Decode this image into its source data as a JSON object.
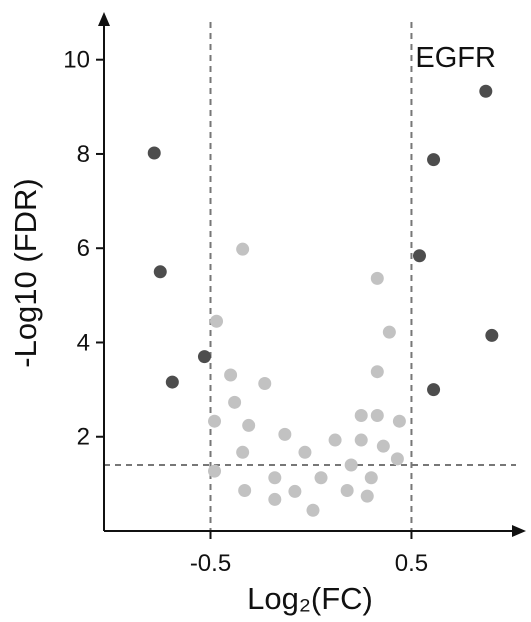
{
  "chart_data": {
    "type": "scatter",
    "xlabel": "Log₂(FC)",
    "ylabel": "-Log10 (FDR)",
    "xlim": [
      -1.03,
      1.07
    ],
    "ylim": [
      0,
      10.8
    ],
    "x_ticks": [
      {
        "value": -0.5,
        "label": "-0.5"
      },
      {
        "value": 0.5,
        "label": "0.5"
      }
    ],
    "y_ticks": [
      {
        "value": 2,
        "label": "2"
      },
      {
        "value": 4,
        "label": "4"
      },
      {
        "value": 6,
        "label": "6"
      },
      {
        "value": 8,
        "label": "8"
      },
      {
        "value": 10,
        "label": "10"
      }
    ],
    "thresholds": {
      "x": [
        -0.5,
        0.5
      ],
      "y": 1.4
    },
    "grid": false,
    "annotations": [
      {
        "text": "EGFR",
        "x": 0.72,
        "y": 9.85
      }
    ],
    "colors": {
      "significant": "#4d4d4d",
      "nonsignificant": "#c2c2c2",
      "axis": "#111111",
      "threshold": "#777777"
    },
    "series": [
      {
        "points": [
          {
            "x": -0.78,
            "y": 8.02
          },
          {
            "x": -0.75,
            "y": 5.5
          },
          {
            "x": -0.69,
            "y": 3.16
          },
          {
            "x": -0.53,
            "y": 3.7
          },
          {
            "x": 0.54,
            "y": 5.84
          },
          {
            "x": 0.61,
            "y": 7.88
          },
          {
            "x": 0.61,
            "y": 3.0
          },
          {
            "x": 0.87,
            "y": 9.33
          },
          {
            "x": 0.9,
            "y": 4.15
          }
        ]
      },
      {
        "points": [
          {
            "x": -0.34,
            "y": 5.98
          },
          {
            "x": -0.47,
            "y": 4.45
          },
          {
            "x": -0.48,
            "y": 2.33
          },
          {
            "x": -0.48,
            "y": 1.27
          },
          {
            "x": -0.4,
            "y": 3.31
          },
          {
            "x": -0.38,
            "y": 2.73
          },
          {
            "x": -0.34,
            "y": 1.67
          },
          {
            "x": -0.31,
            "y": 2.24
          },
          {
            "x": -0.33,
            "y": 0.86
          },
          {
            "x": -0.23,
            "y": 3.13
          },
          {
            "x": -0.18,
            "y": 1.13
          },
          {
            "x": -0.18,
            "y": 0.67
          },
          {
            "x": -0.13,
            "y": 2.05
          },
          {
            "x": -0.08,
            "y": 0.84
          },
          {
            "x": -0.03,
            "y": 1.67
          },
          {
            "x": 0.01,
            "y": 0.44
          },
          {
            "x": 0.05,
            "y": 1.13
          },
          {
            "x": 0.12,
            "y": 1.93
          },
          {
            "x": 0.18,
            "y": 0.86
          },
          {
            "x": 0.2,
            "y": 1.4
          },
          {
            "x": 0.25,
            "y": 1.93
          },
          {
            "x": 0.25,
            "y": 2.45
          },
          {
            "x": 0.28,
            "y": 0.74
          },
          {
            "x": 0.3,
            "y": 1.13
          },
          {
            "x": 0.33,
            "y": 5.36
          },
          {
            "x": 0.33,
            "y": 3.38
          },
          {
            "x": 0.33,
            "y": 2.45
          },
          {
            "x": 0.36,
            "y": 1.8
          },
          {
            "x": 0.39,
            "y": 4.22
          },
          {
            "x": 0.44,
            "y": 2.33
          },
          {
            "x": 0.43,
            "y": 1.53
          }
        ]
      }
    ]
  }
}
